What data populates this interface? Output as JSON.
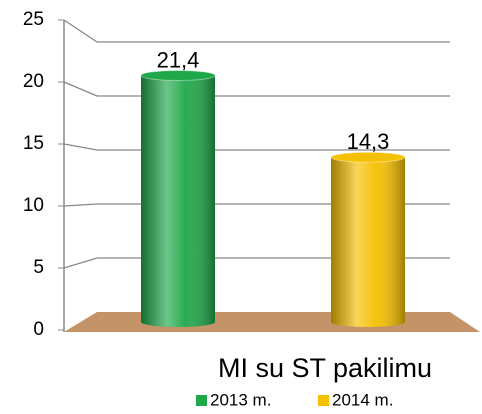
{
  "chart_data": {
    "type": "bar",
    "categories": [
      "MI su ST pakilimu"
    ],
    "series": [
      {
        "name": "2013 m.",
        "color": "#1fa84a",
        "values": [
          21.4
        ],
        "value_labels": [
          "21,4"
        ]
      },
      {
        "name": "2014 m.",
        "color": "#f5c000",
        "values": [
          14.3
        ],
        "value_labels": [
          "14,3"
        ]
      }
    ],
    "ylim": [
      0,
      25
    ],
    "yticks": [
      0,
      5,
      10,
      15,
      20,
      25
    ],
    "grid": true
  }
}
